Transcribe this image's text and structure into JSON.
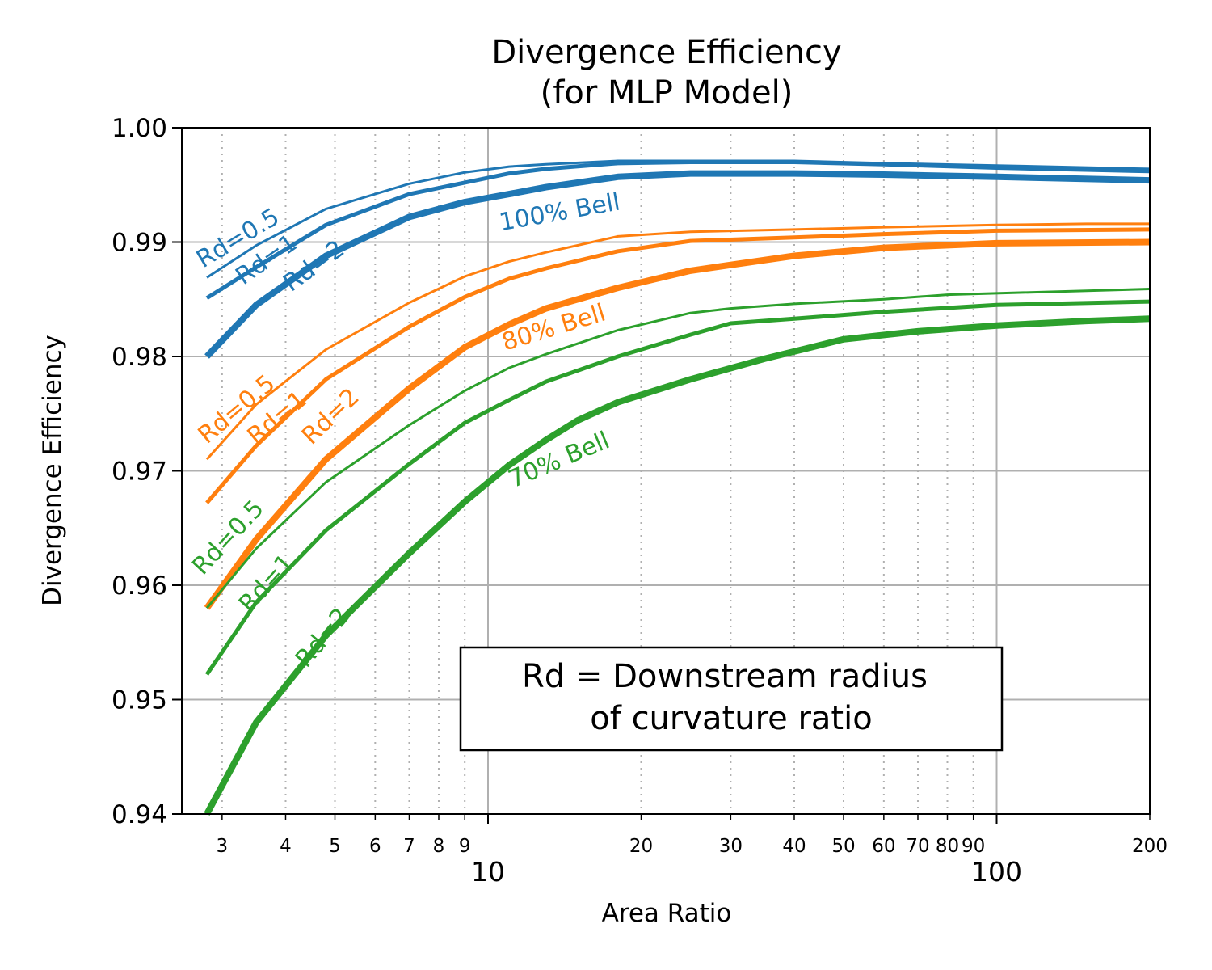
{
  "chart_data": {
    "type": "line",
    "title": "Divergence Efficiency",
    "subtitle": "(for MLP Model)",
    "xlabel": "Area Ratio",
    "ylabel": "Divergence Efficiency",
    "xscale": "log",
    "xlim": [
      2.5,
      200
    ],
    "ylim": [
      0.94,
      1.0
    ],
    "yticks": [
      "0.94",
      "0.95",
      "0.96",
      "0.97",
      "0.98",
      "0.99",
      "1.00"
    ],
    "xticks_major": [
      "10",
      "100"
    ],
    "xticks_minor": [
      "3",
      "4",
      "5",
      "6",
      "7",
      "8",
      "9",
      "20",
      "30",
      "40",
      "50",
      "60",
      "70",
      "80",
      "90",
      "200"
    ],
    "annotation": {
      "line1": "Rd = Downstream radius",
      "line2": "of curvature ratio"
    },
    "families": [
      {
        "name": "100% Bell",
        "label": "100% Bell",
        "color": "#1f77b4",
        "series": [
          {
            "name": "Rd=0.5",
            "label": "Rd=0.5",
            "x": [
              2.8,
              3.5,
              4.8,
              7,
              9,
              11,
              13,
              18,
              25,
              40,
              60,
              100,
              200
            ],
            "y": [
              0.9869,
              0.9897,
              0.9929,
              0.9951,
              0.9961,
              0.9966,
              0.9968,
              0.9971,
              0.9971,
              0.9971,
              0.9969,
              0.9967,
              0.9964
            ]
          },
          {
            "name": "Rd=1",
            "label": "Rd=1",
            "x": [
              2.8,
              3.5,
              4.8,
              7,
              9,
              11,
              13,
              18,
              25,
              40,
              60,
              100,
              200
            ],
            "y": [
              0.9851,
              0.9878,
              0.9915,
              0.9942,
              0.9952,
              0.996,
              0.9964,
              0.9969,
              0.997,
              0.997,
              0.9968,
              0.9965,
              0.9962
            ]
          },
          {
            "name": "Rd=2",
            "label": "Rd=2",
            "x": [
              2.8,
              3.5,
              4.8,
              7,
              9,
              11,
              13,
              18,
              25,
              40,
              60,
              100,
              200
            ],
            "y": [
              0.98,
              0.9845,
              0.9888,
              0.9922,
              0.9935,
              0.9942,
              0.9948,
              0.9957,
              0.996,
              0.996,
              0.9959,
              0.9957,
              0.9954
            ]
          }
        ]
      },
      {
        "name": "80% Bell",
        "label": "80% Bell",
        "color": "#ff7f0e",
        "series": [
          {
            "name": "Rd=0.5",
            "label": "Rd=0.5",
            "x": [
              2.8,
              3.5,
              4.8,
              7,
              9,
              11,
              13,
              18,
              25,
              40,
              60,
              100,
              150,
              200
            ],
            "y": [
              0.971,
              0.9758,
              0.9806,
              0.9847,
              0.987,
              0.9883,
              0.9891,
              0.9905,
              0.9909,
              0.9911,
              0.9913,
              0.9915,
              0.9916,
              0.9916
            ]
          },
          {
            "name": "Rd=1",
            "label": "Rd=1",
            "x": [
              2.8,
              3.5,
              4.8,
              7,
              9,
              11,
              13,
              18,
              25,
              40,
              60,
              100,
              200
            ],
            "y": [
              0.9672,
              0.9722,
              0.978,
              0.9826,
              0.9852,
              0.9868,
              0.9877,
              0.9892,
              0.9901,
              0.9904,
              0.9907,
              0.991,
              0.9911
            ]
          },
          {
            "name": "Rd=2",
            "label": "Rd=2",
            "x": [
              2.8,
              3.5,
              4.8,
              7,
              9,
              11,
              13,
              18,
              25,
              40,
              60,
              100,
              200
            ],
            "y": [
              0.958,
              0.964,
              0.971,
              0.9772,
              0.9808,
              0.9828,
              0.9842,
              0.986,
              0.9875,
              0.9888,
              0.9895,
              0.9899,
              0.99
            ]
          }
        ]
      },
      {
        "name": "70% Bell",
        "label": "70% Bell",
        "color": "#2ca02c",
        "series": [
          {
            "name": "Rd=0.5",
            "label": "Rd=0.5",
            "x": [
              2.8,
              3.5,
              4.8,
              7,
              9,
              11,
              13,
              18,
              25,
              30,
              40,
              60,
              80,
              200
            ],
            "y": [
              0.958,
              0.9632,
              0.969,
              0.974,
              0.977,
              0.979,
              0.9802,
              0.9823,
              0.9838,
              0.9842,
              0.9846,
              0.985,
              0.9854,
              0.9859
            ]
          },
          {
            "name": "Rd=1",
            "label": "Rd=1",
            "x": [
              2.8,
              3.5,
              4.8,
              7,
              9,
              11,
              13,
              18,
              25,
              30,
              40,
              60,
              100,
              200
            ],
            "y": [
              0.9522,
              0.9585,
              0.9648,
              0.9706,
              0.9742,
              0.9762,
              0.9778,
              0.98,
              0.9819,
              0.9829,
              0.9833,
              0.9839,
              0.9845,
              0.9848
            ]
          },
          {
            "name": "Rd=2",
            "label": "Rd=2",
            "x": [
              2.8,
              3.5,
              4.8,
              7,
              9,
              11,
              13,
              15,
              18,
              25,
              35,
              50,
              70,
              100,
              150,
              200
            ],
            "y": [
              0.94,
              0.948,
              0.9556,
              0.9628,
              0.9673,
              0.9705,
              0.9727,
              0.9744,
              0.976,
              0.978,
              0.9798,
              0.9815,
              0.9822,
              0.9827,
              0.9831,
              0.9833
            ]
          }
        ]
      }
    ]
  }
}
